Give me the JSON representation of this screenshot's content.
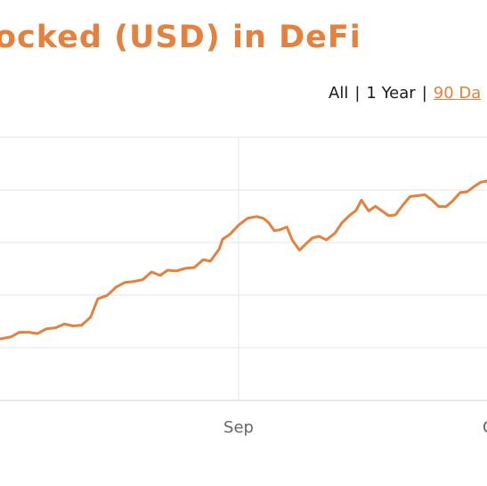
{
  "page": {
    "title": "ocked (USD) in DeFi",
    "accent_color": "#e5813d"
  },
  "range_selector": {
    "options": [
      "All",
      "1 Year",
      "90 Da"
    ],
    "separator": "|",
    "active": "90 Da"
  },
  "chart_data": {
    "type": "line",
    "title": "ocked (USD) in DeFi",
    "xlabel": "",
    "ylabel": "",
    "x_tick_labels": [
      "Sep",
      "O"
    ],
    "x_range": [
      0,
      100
    ],
    "y_range": [
      0,
      100
    ],
    "grid": true,
    "line_color": "#e5813d",
    "series": [
      {
        "values": [
          [
            0,
            23.4
          ],
          [
            2.2,
            24.1
          ],
          [
            4.0,
            25.9
          ],
          [
            5.9,
            25.9
          ],
          [
            7.7,
            25.4
          ],
          [
            9.5,
            27.2
          ],
          [
            11.4,
            27.6
          ],
          [
            13.2,
            29.0
          ],
          [
            15.0,
            28.3
          ],
          [
            16.8,
            28.6
          ],
          [
            18.6,
            31.6
          ],
          [
            20.1,
            38.6
          ],
          [
            22.0,
            39.9
          ],
          [
            23.8,
            43.0
          ],
          [
            25.6,
            44.8
          ],
          [
            27.4,
            45.2
          ],
          [
            29.3,
            45.9
          ],
          [
            31.1,
            48.8
          ],
          [
            32.9,
            47.5
          ],
          [
            34.4,
            49.5
          ],
          [
            36.2,
            49.2
          ],
          [
            38.1,
            50.2
          ],
          [
            39.9,
            50.5
          ],
          [
            41.7,
            53.5
          ],
          [
            43.2,
            52.9
          ],
          [
            45.0,
            57.5
          ],
          [
            45.7,
            61.3
          ],
          [
            47.2,
            63.1
          ],
          [
            49.0,
            66.6
          ],
          [
            50.8,
            69.2
          ],
          [
            52.7,
            69.9
          ],
          [
            54.1,
            69.2
          ],
          [
            55.2,
            67.5
          ],
          [
            56.3,
            64.5
          ],
          [
            57.4,
            64.8
          ],
          [
            58.9,
            65.9
          ],
          [
            60.0,
            61.0
          ],
          [
            61.5,
            57.1
          ],
          [
            62.6,
            59.1
          ],
          [
            64.1,
            61.7
          ],
          [
            65.5,
            62.4
          ],
          [
            67.0,
            61.0
          ],
          [
            68.8,
            63.6
          ],
          [
            70.2,
            67.5
          ],
          [
            71.7,
            70.2
          ],
          [
            73.1,
            72.2
          ],
          [
            74.2,
            76.1
          ],
          [
            75.7,
            72.0
          ],
          [
            77.1,
            73.8
          ],
          [
            78.3,
            72.2
          ],
          [
            79.8,
            70.2
          ],
          [
            81.2,
            70.5
          ],
          [
            82.7,
            74.2
          ],
          [
            84.2,
            77.5
          ],
          [
            85.7,
            77.8
          ],
          [
            87.2,
            78.2
          ],
          [
            88.6,
            76.3
          ],
          [
            90.1,
            73.7
          ],
          [
            91.6,
            73.7
          ],
          [
            93.0,
            75.9
          ],
          [
            94.5,
            79.0
          ],
          [
            95.9,
            79.3
          ],
          [
            97.4,
            81.4
          ],
          [
            98.8,
            83.0
          ],
          [
            100,
            83.4
          ]
        ]
      }
    ]
  }
}
